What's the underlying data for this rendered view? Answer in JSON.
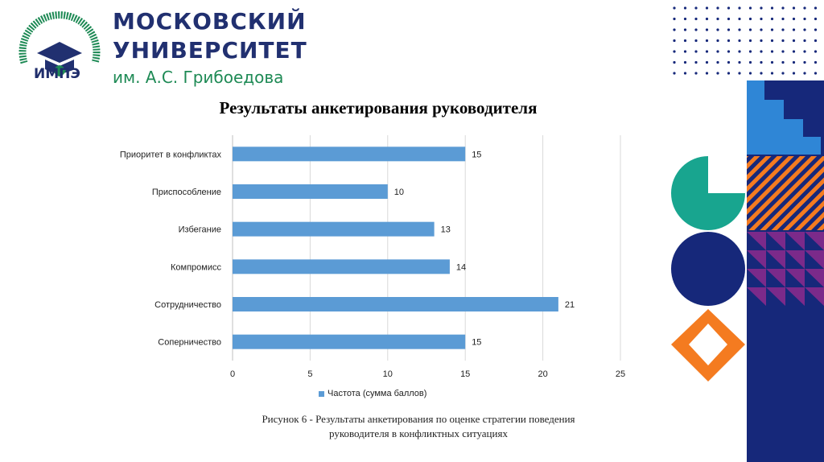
{
  "header": {
    "seal_abbrev": "ИМПЭ",
    "seal_ring_text": "ИНСТИТУТ МЕЖДУНАРОДНОЙ ЭКОНОМИКИ, ЛИДЕРСТВА И МЕНЕДЖМЕНТА",
    "university_line1": "МОСКОВСКИЙ",
    "university_line2": "УНИВЕРСИТЕТ",
    "university_line3": "им. А.С. Грибоедова"
  },
  "colors": {
    "bar": "#5b9bd5",
    "brand_dark": "#213070",
    "brand_green": "#1e8a55",
    "deco_blue": "#2f86d6",
    "deco_teal": "#18a58f",
    "deco_navy": "#16287a",
    "deco_orange": "#f47b20",
    "deco_purple": "#7b2a8a"
  },
  "chart_data": {
    "type": "bar",
    "orientation": "horizontal",
    "title": "Результаты анкетирования руководителя",
    "categories": [
      "Приоритет в конфликтах",
      "Приспособление",
      "Избегание",
      "Компромисс",
      "Сотрудничество",
      "Соперничество"
    ],
    "series": [
      {
        "name": "Частота (сумма баллов)",
        "values": [
          15,
          10,
          13,
          14,
          21,
          15
        ]
      }
    ],
    "xlim": [
      0,
      25
    ],
    "xticks": [
      0,
      5,
      10,
      15,
      20,
      25
    ],
    "grid": true,
    "legend_position": "bottom",
    "data_labels": true
  },
  "caption": {
    "line1": "Рисунок 6 - Результаты анкетирования  по оценке стратегии поведения",
    "line2": "руководителя в конфликтных ситуациях"
  }
}
